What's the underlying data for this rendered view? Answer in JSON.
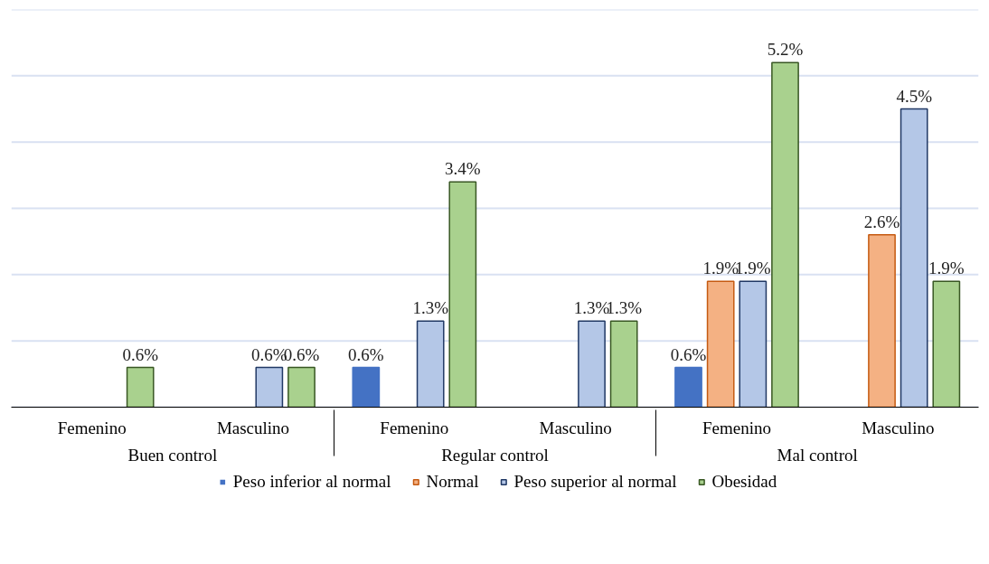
{
  "chart_data": {
    "type": "bar",
    "categories": [
      "Femenino",
      "Masculino",
      "Femenino",
      "Masculino",
      "Femenino",
      "Masculino"
    ],
    "annotations": [
      "Buen control",
      "Regular control",
      "Mal control"
    ],
    "series": [
      {
        "name": "Peso inferior al normal",
        "color": "#4472c4",
        "values": [
          null,
          null,
          0.6,
          null,
          0.6,
          null
        ],
        "value_labels": [
          null,
          null,
          "0.6%",
          null,
          "0.6%",
          null
        ]
      },
      {
        "name": "Normal",
        "color": "#f4b183",
        "values": [
          null,
          null,
          null,
          null,
          1.9,
          2.6
        ],
        "value_labels": [
          null,
          null,
          null,
          null,
          "1.9%",
          "2.6%"
        ]
      },
      {
        "name": "Peso superior al normal",
        "color": "#b4c7e7",
        "values": [
          null,
          0.6,
          1.3,
          1.3,
          1.9,
          4.5
        ],
        "value_labels": [
          null,
          "0.6%",
          "1.3%",
          "1.3%",
          "1.9%",
          "4.5%"
        ]
      },
      {
        "name": "Obesidad",
        "color": "#a9d18e",
        "values": [
          0.6,
          0.6,
          3.4,
          1.3,
          5.2,
          1.9
        ],
        "value_labels": [
          "0.6%",
          "0.6%",
          "3.4%",
          "1.3%",
          "5.2%",
          "1.9%"
        ]
      }
    ],
    "ylim": [
      0,
      6
    ],
    "yticks": [
      {
        "value": 0,
        "label": null
      },
      {
        "value": 1,
        "label": null
      },
      {
        "value": 2,
        "label": null
      },
      {
        "value": 3,
        "label": null
      },
      {
        "value": 4,
        "label": null
      },
      {
        "value": 5,
        "label": null
      },
      {
        "value": 6,
        "label": null
      }
    ],
    "grid": "y",
    "legend": "bottom",
    "tick_labels": "x"
  }
}
